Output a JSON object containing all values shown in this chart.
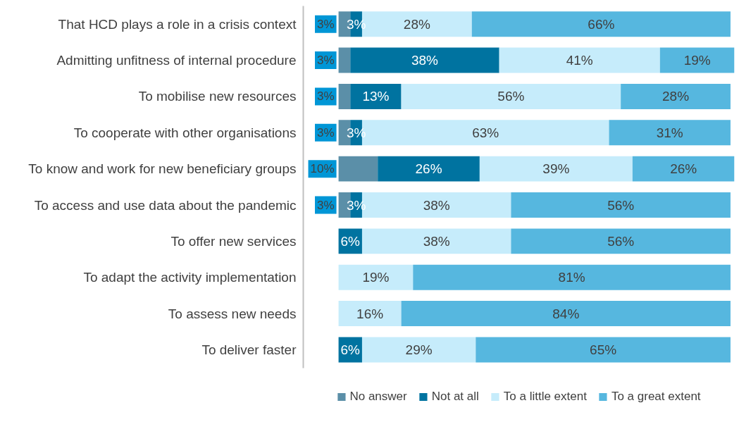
{
  "chart_data": {
    "type": "bar",
    "orientation": "horizontal",
    "stacked": true,
    "data_labels": true,
    "grid": false,
    "legend": "bottom",
    "tick_labels": "y",
    "xlim": [
      -9,
      101
    ],
    "categories": [
      "That HCD plays a role in a crisis context",
      "Admitting unfitness of internal procedure",
      "To mobilise new resources",
      "To cooperate with other organisations",
      "To know and work for new beneficiary groups",
      "To access and use data about the pandemic",
      "To offer new services",
      "To adapt the activity implementation",
      "To assess new needs",
      "To deliver faster"
    ],
    "series": [
      {
        "name": "No answer",
        "color": "#5b8fa8",
        "values": [
          3,
          3,
          3,
          3,
          10,
          3,
          null,
          null,
          null,
          null
        ],
        "value_labels": [
          "3%",
          "3%",
          "3%",
          "3%",
          "10%",
          "3%",
          null,
          null,
          null,
          null
        ]
      },
      {
        "name": "Not at all",
        "color": "#0073a0",
        "values": [
          3,
          38,
          13,
          3,
          26,
          3,
          6,
          null,
          null,
          6
        ],
        "value_labels": [
          "3%",
          "38%",
          "13%",
          "3%",
          "26%",
          "3%",
          "6%",
          null,
          null,
          "6%"
        ]
      },
      {
        "name": "To a little extent",
        "color": "#c6ecfb",
        "values": [
          28,
          41,
          56,
          63,
          39,
          38,
          38,
          19,
          16,
          29
        ],
        "value_labels": [
          "28%",
          "41%",
          "56%",
          "63%",
          "39%",
          "38%",
          "38%",
          "19%",
          "16%",
          "29%"
        ]
      },
      {
        "name": "To a great extent",
        "color": "#56b7df",
        "values": [
          66,
          19,
          28,
          31,
          26,
          56,
          56,
          81,
          84,
          65
        ],
        "value_labels": [
          "66%",
          "19%",
          "28%",
          "31%",
          "26%",
          "56%",
          "56%",
          "81%",
          "84%",
          "65%"
        ]
      }
    ]
  }
}
